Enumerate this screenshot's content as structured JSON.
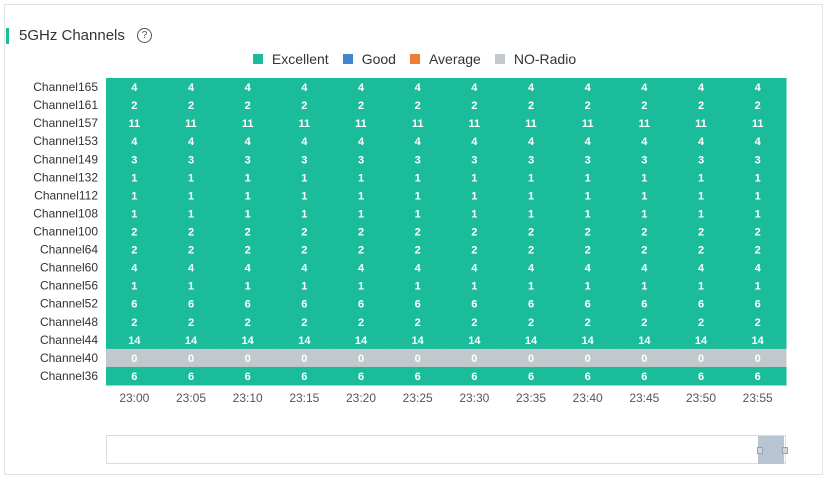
{
  "header": {
    "title": "5GHz Channels",
    "help_icon": "?"
  },
  "legend": [
    {
      "label": "Excellent",
      "color": "#1abc9c"
    },
    {
      "label": "Good",
      "color": "#3f86cf"
    },
    {
      "label": "Average",
      "color": "#ef7d31"
    },
    {
      "label": "NO-Radio",
      "color": "#c3c8cc"
    }
  ],
  "chart_data": {
    "type": "heatmap",
    "title": "5GHz Channels",
    "legend_placement": "top-center",
    "x": [
      "23:00",
      "23:05",
      "23:10",
      "23:15",
      "23:20",
      "23:25",
      "23:30",
      "23:35",
      "23:40",
      "23:45",
      "23:50",
      "23:55"
    ],
    "y": [
      "Channel165",
      "Channel161",
      "Channel157",
      "Channel153",
      "Channel149",
      "Channel132",
      "Channel112",
      "Channel108",
      "Channel100",
      "Channel64",
      "Channel60",
      "Channel56",
      "Channel52",
      "Channel48",
      "Channel44",
      "Channel40",
      "Channel36"
    ],
    "row_values": [
      4,
      2,
      11,
      4,
      3,
      1,
      1,
      1,
      2,
      2,
      4,
      1,
      6,
      2,
      14,
      0,
      6
    ],
    "row_status": [
      "Excellent",
      "Excellent",
      "Excellent",
      "Excellent",
      "Excellent",
      "Excellent",
      "Excellent",
      "Excellent",
      "Excellent",
      "Excellent",
      "Excellent",
      "Excellent",
      "Excellent",
      "Excellent",
      "Excellent",
      "NO-Radio",
      "Excellent"
    ],
    "colors": {
      "Excellent": "#1abc9c",
      "Good": "#3f86cf",
      "Average": "#ef7d31",
      "NO-Radio": "#c3c8cc"
    }
  },
  "zoom": {
    "start": 1.0,
    "end": 1.0
  }
}
